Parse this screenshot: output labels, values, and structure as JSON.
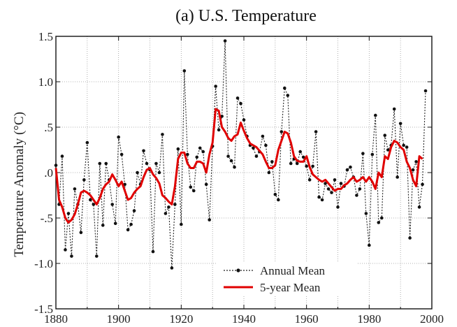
{
  "chart_data": {
    "type": "line",
    "title": "(a)  U.S. Temperature",
    "xlabel": "",
    "ylabel": "Temperature Anomaly (°C)",
    "xlim": [
      1880,
      2000
    ],
    "ylim": [
      -1.5,
      1.5
    ],
    "x_ticks": [
      1880,
      1900,
      1920,
      1940,
      1960,
      1980,
      2000
    ],
    "x_tick_labels": [
      "1880",
      "1900",
      "1920",
      "1940",
      "1960",
      "1980",
      "2000"
    ],
    "y_ticks": [
      -1.5,
      -1.0,
      -0.5,
      0.0,
      0.5,
      1.0,
      1.5
    ],
    "y_tick_labels": [
      "-1.5",
      "-1.0",
      "-.5",
      ".0",
      ".5",
      "1.0",
      "1.5"
    ],
    "grid": true,
    "legend_position": "bottom-center",
    "series": [
      {
        "name": "Annual Mean",
        "color": "#222222",
        "style": "dotted-with-markers",
        "x": [
          1880,
          1881,
          1882,
          1883,
          1884,
          1885,
          1886,
          1887,
          1888,
          1889,
          1890,
          1891,
          1892,
          1893,
          1894,
          1895,
          1896,
          1897,
          1898,
          1899,
          1900,
          1901,
          1902,
          1903,
          1904,
          1905,
          1906,
          1907,
          1908,
          1909,
          1910,
          1911,
          1912,
          1913,
          1914,
          1915,
          1916,
          1917,
          1918,
          1919,
          1920,
          1921,
          1922,
          1923,
          1924,
          1925,
          1926,
          1927,
          1928,
          1929,
          1930,
          1931,
          1932,
          1933,
          1934,
          1935,
          1936,
          1937,
          1938,
          1939,
          1940,
          1941,
          1942,
          1943,
          1944,
          1945,
          1946,
          1947,
          1948,
          1949,
          1950,
          1951,
          1952,
          1953,
          1954,
          1955,
          1956,
          1957,
          1958,
          1959,
          1960,
          1961,
          1962,
          1963,
          1964,
          1965,
          1966,
          1967,
          1968,
          1969,
          1970,
          1971,
          1972,
          1973,
          1974,
          1975,
          1976,
          1977,
          1978,
          1979,
          1980,
          1981,
          1982,
          1983,
          1984,
          1985,
          1986,
          1987,
          1988,
          1989,
          1990,
          1991,
          1992,
          1993,
          1994,
          1995,
          1996,
          1997,
          1998
        ],
        "y": [
          0.08,
          -0.35,
          0.18,
          -0.85,
          -0.45,
          -0.92,
          -0.18,
          -0.35,
          -0.66,
          -0.08,
          0.33,
          -0.3,
          -0.35,
          -0.92,
          0.1,
          -0.58,
          0.1,
          -0.08,
          -0.35,
          -0.56,
          0.39,
          0.2,
          -0.13,
          -0.63,
          -0.57,
          -0.42,
          0.0,
          -0.13,
          0.24,
          0.1,
          0.03,
          -0.87,
          0.1,
          0.0,
          0.42,
          -0.45,
          -0.38,
          -1.05,
          -0.35,
          0.26,
          -0.57,
          1.12,
          0.2,
          -0.16,
          -0.2,
          0.17,
          0.27,
          0.23,
          -0.13,
          -0.52,
          0.29,
          0.95,
          0.47,
          0.62,
          1.45,
          0.18,
          0.13,
          0.06,
          0.82,
          0.76,
          0.58,
          0.4,
          0.3,
          0.27,
          0.18,
          0.23,
          0.4,
          0.3,
          0.0,
          0.12,
          -0.24,
          -0.3,
          0.45,
          0.93,
          0.85,
          0.1,
          0.15,
          0.1,
          0.23,
          0.17,
          0.07,
          -0.08,
          0.07,
          0.45,
          -0.27,
          -0.3,
          -0.12,
          -0.18,
          -0.22,
          -0.08,
          -0.38,
          -0.12,
          -0.15,
          0.03,
          0.06,
          -0.05,
          -0.25,
          -0.18,
          0.21,
          -0.45,
          -0.8,
          0.2,
          0.63,
          -0.55,
          -0.5,
          0.41,
          0.25,
          0.3,
          0.7,
          -0.05,
          0.54,
          0.3,
          0.28,
          -0.72,
          0.03,
          0.12,
          -0.38,
          -0.13,
          0.9
        ]
      },
      {
        "name": "5-year Mean",
        "color": "#e00000",
        "style": "solid-thick",
        "x": [
          1880,
          1881,
          1882,
          1883,
          1884,
          1885,
          1886,
          1887,
          1888,
          1889,
          1890,
          1891,
          1892,
          1893,
          1894,
          1895,
          1896,
          1897,
          1898,
          1899,
          1900,
          1901,
          1902,
          1903,
          1904,
          1905,
          1906,
          1907,
          1908,
          1909,
          1910,
          1911,
          1912,
          1913,
          1914,
          1915,
          1916,
          1917,
          1918,
          1919,
          1920,
          1921,
          1922,
          1923,
          1924,
          1925,
          1926,
          1927,
          1928,
          1929,
          1930,
          1931,
          1932,
          1933,
          1934,
          1935,
          1936,
          1937,
          1938,
          1939,
          1940,
          1941,
          1942,
          1943,
          1944,
          1945,
          1946,
          1947,
          1948,
          1949,
          1950,
          1951,
          1952,
          1953,
          1954,
          1955,
          1956,
          1957,
          1958,
          1959,
          1960,
          1961,
          1962,
          1963,
          1964,
          1965,
          1966,
          1967,
          1968,
          1969,
          1970,
          1971,
          1972,
          1973,
          1974,
          1975,
          1976,
          1977,
          1978,
          1979,
          1980,
          1981,
          1982,
          1983,
          1984,
          1985,
          1986,
          1987,
          1988,
          1989,
          1990,
          1991,
          1992,
          1993,
          1994,
          1995,
          1996,
          1997
        ],
        "y": [
          0.05,
          -0.3,
          -0.38,
          -0.5,
          -0.55,
          -0.52,
          -0.46,
          -0.35,
          -0.22,
          -0.2,
          -0.22,
          -0.25,
          -0.3,
          -0.35,
          -0.28,
          -0.18,
          -0.13,
          -0.1,
          -0.02,
          -0.08,
          -0.15,
          -0.1,
          -0.2,
          -0.3,
          -0.28,
          -0.22,
          -0.18,
          -0.15,
          -0.05,
          0.03,
          0.05,
          -0.02,
          -0.06,
          -0.12,
          -0.25,
          -0.28,
          -0.32,
          -0.35,
          -0.15,
          0.15,
          0.22,
          0.22,
          0.1,
          0.05,
          0.05,
          0.12,
          0.12,
          0.1,
          0.0,
          0.2,
          0.33,
          0.7,
          0.68,
          0.5,
          0.45,
          0.38,
          0.35,
          0.4,
          0.42,
          0.55,
          0.46,
          0.38,
          0.32,
          0.3,
          0.28,
          0.24,
          0.2,
          0.12,
          0.05,
          0.05,
          0.08,
          0.25,
          0.35,
          0.45,
          0.43,
          0.33,
          0.18,
          0.13,
          0.12,
          0.12,
          0.18,
          0.06,
          -0.02,
          -0.05,
          -0.08,
          -0.1,
          -0.08,
          -0.12,
          -0.16,
          -0.2,
          -0.18,
          -0.18,
          -0.14,
          -0.12,
          -0.08,
          -0.05,
          -0.1,
          -0.08,
          -0.05,
          -0.1,
          -0.05,
          -0.1,
          -0.18,
          0.0,
          -0.05,
          0.18,
          0.15,
          0.28,
          0.35,
          0.33,
          0.28,
          0.25,
          0.12,
          0.05,
          -0.08,
          -0.15,
          0.18,
          0.15
        ]
      }
    ]
  }
}
